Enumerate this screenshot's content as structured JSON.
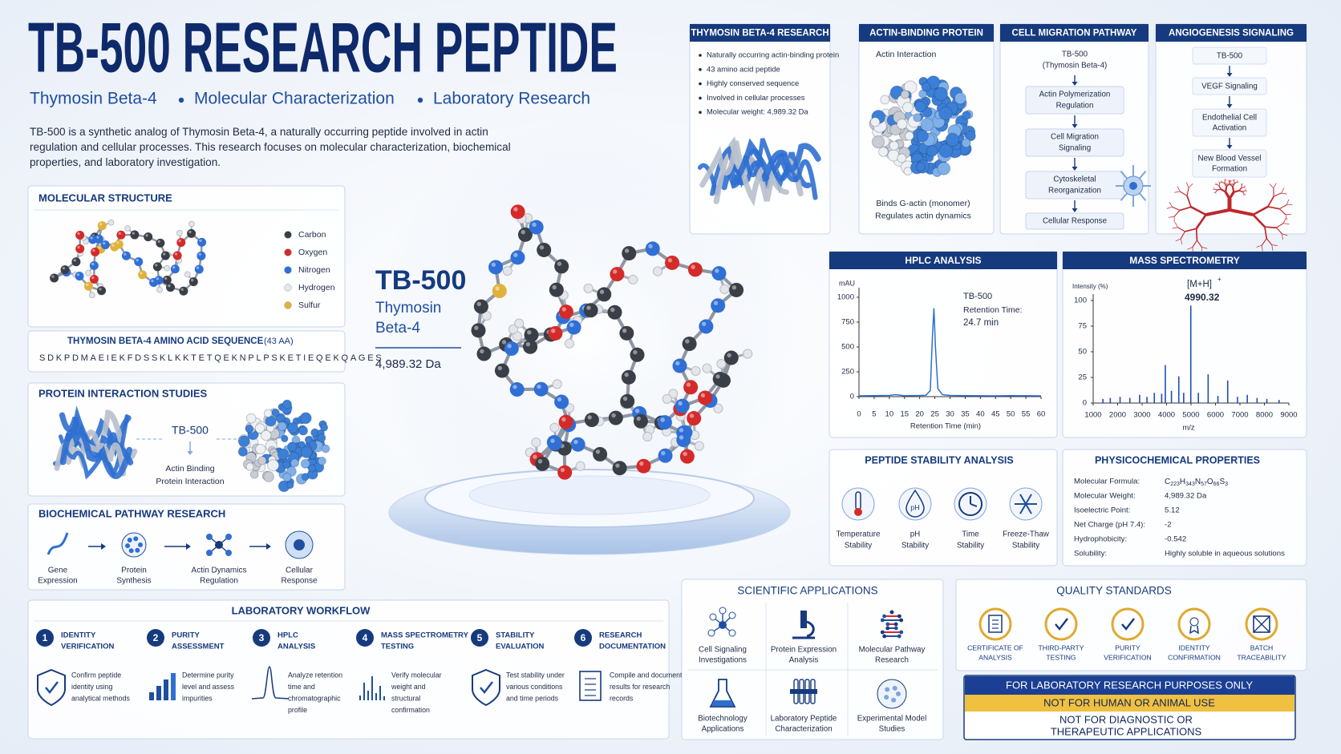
{
  "header": {
    "title": "TB-500 RESEARCH PEPTIDE",
    "subtitle": [
      "Thymosin Beta-4",
      "Molecular Characterization",
      "Laboratory Research"
    ],
    "intro": "TB-500 is a synthetic analog of Thymosin Beta-4, a naturally occurring peptide involved in actin regulation and cellular processes. This research focuses on molecular characterization, biochemical properties, and laboratory investigation."
  },
  "molecular_structure": {
    "title": "MOLECULAR STRUCTURE",
    "legend": [
      {
        "label": "Carbon",
        "color": "#3a3f47"
      },
      {
        "label": "Oxygen",
        "color": "#d42a2a"
      },
      {
        "label": "Nitrogen",
        "color": "#2f6fd6"
      },
      {
        "label": "Hydrogen",
        "color": "#e4e6ea"
      },
      {
        "label": "Sulfur",
        "color": "#e0b23a"
      }
    ]
  },
  "sequence": {
    "title": "THYMOSIN BETA-4 AMINO ACID SEQUENCE",
    "count": "(43 AA)",
    "sequence": "SDKPDMAEIEKFDSSKLKKTETQEKNPLPSKETIEQEKQAGES"
  },
  "protein_interaction": {
    "title": "PROTEIN INTERACTION STUDIES",
    "center_label": "TB-500",
    "caption": [
      "Actin Binding",
      "Protein Interaction"
    ]
  },
  "pathway": {
    "title": "BIOCHEMICAL PATHWAY RESEARCH",
    "steps": [
      [
        "Gene",
        "Expression"
      ],
      [
        "Protein",
        "Synthesis"
      ],
      [
        "Actin Dynamics",
        "Regulation"
      ],
      [
        "Cellular",
        "Response"
      ]
    ]
  },
  "workflow": {
    "title": "LABORATORY WORKFLOW",
    "steps": [
      {
        "number": 1,
        "title": [
          "IDENTITY",
          "VERIFICATION"
        ],
        "text": [
          "Confirm peptide",
          "identity using",
          "analytical methods"
        ]
      },
      {
        "number": 2,
        "title": [
          "PURITY",
          "ASSESSMENT"
        ],
        "text": [
          "Determine purity",
          "level and assess",
          "impurities"
        ]
      },
      {
        "number": 3,
        "title": [
          "HPLC",
          "ANALYSIS"
        ],
        "text": [
          "Analyze retention",
          "time and",
          "chromatographic",
          "profile"
        ]
      },
      {
        "number": 4,
        "title": [
          "MASS SPECTROMETRY",
          "TESTING"
        ],
        "text": [
          "Verify molecular",
          "weight and",
          "structural",
          "confirmation"
        ]
      },
      {
        "number": 5,
        "title": [
          "STABILITY",
          "EVALUATION"
        ],
        "text": [
          "Test stability under",
          "various conditions",
          "and time periods"
        ]
      },
      {
        "number": 6,
        "title": [
          "RESEARCH",
          "DOCUMENTATION"
        ],
        "text": [
          "Compile and document",
          "results for research",
          "records"
        ]
      }
    ]
  },
  "center": {
    "name": "TB-500",
    "subtitle": [
      "Thymosin",
      "Beta-4"
    ],
    "mass": "4,989.32 Da"
  },
  "research_card": {
    "title": "THYMOSIN BETA-4 RESEARCH",
    "items": [
      "Naturally occurring actin-binding protein",
      "43 amino acid peptide",
      "Highly conserved sequence",
      "Involved in cellular processes",
      "Molecular weight: 4,989.32 Da"
    ]
  },
  "actin_card": {
    "title": "ACTIN-BINDING PROTEIN",
    "label": "Actin Interaction",
    "caption": [
      "Binds G-actin (monomer)",
      "Regulates actin dynamics"
    ]
  },
  "migration_card": {
    "title": "CELL MIGRATION PATHWAY",
    "steps": [
      [
        "TB-500",
        "(Thymosin Beta-4)"
      ],
      [
        "Actin Polymerization",
        "Regulation"
      ],
      [
        "Cell Migration",
        "Signaling"
      ],
      [
        "Cytoskeletal",
        "Reorganization"
      ],
      [
        "Cellular Response"
      ]
    ]
  },
  "angiogenesis_card": {
    "title": "ANGIOGENESIS SIGNALING",
    "steps": [
      [
        "TB-500"
      ],
      [
        "VEGF Signaling"
      ],
      [
        "Endothelial Cell",
        "Activation"
      ],
      [
        "New Blood Vessel",
        "Formation"
      ]
    ]
  },
  "hplc": {
    "title": "HPLC ANALYSIS",
    "y_unit": "mAU",
    "x_label": "Retention Time (min)",
    "annotation": [
      "TB-500",
      "Retention Time:",
      "24.7 min"
    ],
    "xlim": [
      0,
      60
    ],
    "ylim": [
      0,
      1000
    ],
    "xticks": [
      0,
      5,
      10,
      15,
      20,
      25,
      30,
      35,
      40,
      45,
      50,
      55,
      60
    ],
    "yticks": [
      0,
      250,
      500,
      750,
      1000
    ],
    "trace": {
      "x": [
        0,
        5,
        10,
        12,
        15,
        20,
        22,
        23.5,
        24.2,
        24.7,
        25.2,
        26,
        27.5,
        30,
        35,
        40,
        45,
        50,
        55,
        60
      ],
      "y": [
        8,
        10,
        12,
        20,
        9,
        11,
        14,
        60,
        600,
        890,
        500,
        80,
        20,
        12,
        10,
        9,
        8,
        10,
        9,
        8
      ]
    }
  },
  "mass_spec": {
    "title": "MASS SPECTROMETRY",
    "y_unit": "Intensity (%)",
    "x_label": "m/z",
    "ion": "[M+H]",
    "charge": "+",
    "peak_label": "4990.32",
    "xlim": [
      1000,
      9000
    ],
    "ylim": [
      0,
      100
    ],
    "xticks": [
      1000,
      2000,
      3000,
      4000,
      5000,
      6000,
      7000,
      8000,
      9000
    ],
    "yticks": [
      0,
      25,
      50,
      75,
      100
    ],
    "peaks": {
      "x": [
        1400,
        1700,
        2100,
        2500,
        2900,
        3200,
        3500,
        3800,
        3950,
        4200,
        4500,
        4700,
        4990,
        5300,
        5700,
        6100,
        6500,
        6900,
        7300,
        7700,
        8100,
        8600
      ],
      "y": [
        4,
        5,
        6,
        5,
        8,
        6,
        10,
        9,
        37,
        12,
        26,
        10,
        95,
        10,
        28,
        7,
        22,
        6,
        8,
        5,
        4,
        3
      ]
    }
  },
  "stability": {
    "title": "PEPTIDE STABILITY ANALYSIS",
    "icon_text": "pH",
    "items": [
      [
        "Temperature",
        "Stability"
      ],
      [
        "pH",
        "Stability"
      ],
      [
        "Time",
        "Stability"
      ],
      [
        "Freeze-Thaw",
        "Stability"
      ]
    ]
  },
  "properties": {
    "title": "PHYSICOCHEMICAL PROPERTIES",
    "rows": [
      {
        "label": "Molecular Formula:",
        "formula": [
          "C",
          "223",
          "H",
          "343",
          "N",
          "57",
          "O",
          "66",
          "S",
          "3"
        ]
      },
      {
        "label": "Molecular Weight:",
        "value": "4,989.32 Da"
      },
      {
        "label": "Isoelectric Point:",
        "value": "5.12"
      },
      {
        "label": "Net Charge (pH 7.4):",
        "value": "-2"
      },
      {
        "label": "Hydrophobicity:",
        "value": "-0.542"
      },
      {
        "label": "Solubility:",
        "value": "Highly soluble in aqueous solutions"
      }
    ]
  },
  "applications": {
    "title": "SCIENTIFIC APPLICATIONS",
    "items": [
      [
        "Cell Signaling",
        "Investigations"
      ],
      [
        "Protein Expression",
        "Analysis"
      ],
      [
        "Molecular Pathway",
        "Research"
      ],
      [
        "Biotechnology",
        "Applications"
      ],
      [
        "Laboratory Peptide",
        "Characterization"
      ],
      [
        "Experimental Model",
        "Studies"
      ]
    ]
  },
  "quality": {
    "title": "QUALITY STANDARDS",
    "items": [
      [
        "CERTIFICATE OF",
        "ANALYSIS"
      ],
      [
        "THIRD-PARTY",
        "TESTING"
      ],
      [
        "PURITY",
        "VERIFICATION"
      ],
      [
        "IDENTITY",
        "CONFIRMATION"
      ],
      [
        "BATCH",
        "TRACEABILITY"
      ]
    ]
  },
  "disclaimer": {
    "lines": [
      "FOR LABORATORY RESEARCH PURPOSES ONLY",
      "NOT FOR HUMAN OR ANIMAL USE",
      [
        "NOT FOR DIAGNOSTIC OR",
        "THERAPEUTIC APPLICATIONS"
      ]
    ]
  }
}
